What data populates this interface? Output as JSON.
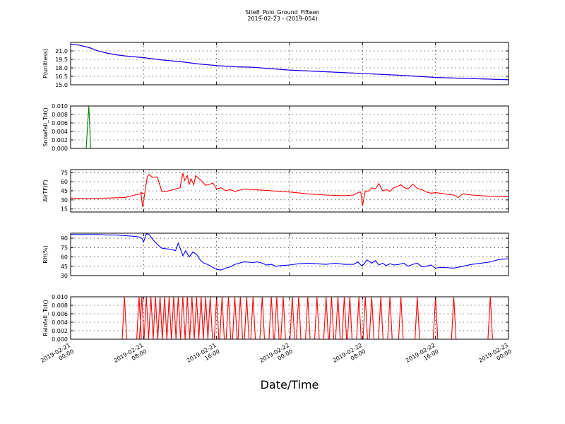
{
  "title_line1": "Site8_Polo_Ground_Fifteen",
  "title_line2": "2019-02-23 - (2019-054)",
  "xlabel": "Date/Time",
  "chart_data": {
    "type": "line",
    "x_tick_labels": [
      [
        "2019-02-21",
        "00:00"
      ],
      [
        "2019-02-21",
        "08:00"
      ],
      [
        "2019-02-21",
        "16:00"
      ],
      [
        "2019-02-22",
        "00:00"
      ],
      [
        "2019-02-22",
        "08:00"
      ],
      [
        "2019-02-22",
        "16:00"
      ],
      [
        "2019-02-23",
        "00:00"
      ]
    ],
    "x_tick_hours": [
      0,
      8,
      16,
      24,
      32,
      40,
      48
    ],
    "xlim_hours": [
      0,
      48
    ],
    "grid": true,
    "panels": [
      {
        "ylabel": "P(unitless)",
        "ylim": [
          15.0,
          22.5
        ],
        "yticks": [
          15.0,
          16.5,
          18.0,
          19.5,
          21.0
        ],
        "ytick_labels": [
          "15.0",
          "16.5",
          "18.0",
          "19.5",
          "21.0"
        ],
        "series": [
          {
            "color": "#ff0000",
            "x": [
              0,
              1,
              2,
              3,
              4,
              5,
              6,
              8,
              10,
              12,
              14,
              16,
              18,
              20,
              24,
              28,
              32,
              36,
              40,
              44,
              48
            ],
            "y": [
              22.2,
              22.0,
              21.6,
              21.0,
              20.6,
              20.3,
              20.1,
              19.8,
              19.4,
              19.1,
              18.7,
              18.4,
              18.2,
              18.1,
              17.6,
              17.3,
              17.0,
              16.7,
              16.3,
              16.1,
              15.9
            ]
          },
          {
            "color": "#0000ff",
            "x": [
              0,
              1,
              2,
              3,
              4,
              5,
              6,
              8,
              10,
              12,
              14,
              16,
              18,
              20,
              24,
              28,
              32,
              36,
              40,
              44,
              48
            ],
            "y": [
              22.2,
              22.0,
              21.6,
              21.0,
              20.6,
              20.3,
              20.1,
              19.8,
              19.4,
              19.1,
              18.7,
              18.4,
              18.2,
              18.1,
              17.6,
              17.3,
              17.0,
              16.7,
              16.3,
              16.1,
              15.9
            ]
          }
        ]
      },
      {
        "ylabel": "Snowfall_Tot()",
        "ylim": [
          0.0,
          0.01
        ],
        "yticks": [
          0.0,
          0.002,
          0.004,
          0.006,
          0.008,
          0.01
        ],
        "ytick_labels": [
          "0.000",
          "0.002",
          "0.004",
          "0.006",
          "0.008",
          "0.010"
        ],
        "series": [
          {
            "color": "#008000",
            "x": [
              0,
              1.7,
              2.0,
              2.2,
              48
            ],
            "y": [
              0,
              0,
              0.01,
              0,
              0
            ]
          }
        ]
      },
      {
        "ylabel": "AirTF(F)",
        "ylim": [
          10,
          80
        ],
        "yticks": [
          15,
          30,
          45,
          60,
          75
        ],
        "ytick_labels": [
          "15",
          "30",
          "45",
          "60",
          "75"
        ],
        "series": [
          {
            "color": "#ff0000",
            "x": [
              0,
              2,
              4,
              6,
              7,
              8,
              7.7,
              7.9,
              8.1,
              8.4,
              8.6,
              9.0,
              9.5,
              10.0,
              10.5,
              11.0,
              12.0,
              12.3,
              12.5,
              12.8,
              13.0,
              13.2,
              13.5,
              13.7,
              14.0,
              14.3,
              14.8,
              15.3,
              15.6,
              16.0,
              16.5,
              17.0,
              17.5,
              18.0,
              19.0,
              20.0,
              21.0,
              22.0,
              24.0,
              26.0,
              28.0,
              30.0,
              31.0,
              31.5,
              31.8,
              32.0,
              32.3,
              32.6,
              33.0,
              33.4,
              33.8,
              34.2,
              34.6,
              35.0,
              35.4,
              35.8,
              36.2,
              36.6,
              37.0,
              37.5,
              38.0,
              38.5,
              39.0,
              39.5,
              40.0,
              41.0,
              42.0,
              42.5,
              43.0,
              44.0,
              45.0,
              46.0,
              48.0
            ],
            "y": [
              33,
              32,
              33,
              34,
              38,
              41,
              42,
              18,
              38,
              68,
              72,
              67,
              68,
              44,
              44,
              46,
              50,
              74,
              62,
              70,
              55,
              65,
              55,
              70,
              66,
              62,
              54,
              56,
              58,
              48,
              50,
              45,
              47,
              44,
              48,
              47,
              46,
              45,
              43,
              40,
              38,
              37,
              38,
              42,
              43,
              20,
              45,
              44,
              50,
              48,
              57,
              45,
              47,
              44,
              50,
              52,
              55,
              50,
              48,
              56,
              49,
              47,
              43,
              41,
              42,
              40,
              38,
              34,
              40,
              38,
              37,
              36,
              35
            ]
          }
        ]
      },
      {
        "ylabel": "RH(%)",
        "ylim": [
          30,
          98
        ],
        "yticks": [
          30,
          45,
          60,
          75,
          90
        ],
        "ytick_labels": [
          "30",
          "45",
          "60",
          "75",
          "90"
        ],
        "series": [
          {
            "color": "#0000ff",
            "x": [
              0,
              2,
              3,
              4,
              5,
              6,
              7,
              7.5,
              7.8,
              8.0,
              8.3,
              8.6,
              9.0,
              9.5,
              10.0,
              11.0,
              11.5,
              11.8,
              12.0,
              12.3,
              12.6,
              13.0,
              13.4,
              13.8,
              14.2,
              14.6,
              15.0,
              15.5,
              16.0,
              16.5,
              17.0,
              17.5,
              18.0,
              19.0,
              20.0,
              20.5,
              21.0,
              21.5,
              22.0,
              22.5,
              23.0,
              24.0,
              25.0,
              26.0,
              27.0,
              28.0,
              29.0,
              30.0,
              31.0,
              31.5,
              31.8,
              32.0,
              32.5,
              33.0,
              33.4,
              33.8,
              34.2,
              34.6,
              35.0,
              35.5,
              36.0,
              36.5,
              37.0,
              37.5,
              38.0,
              38.5,
              39.0,
              39.5,
              40.0,
              40.5,
              41.0,
              42.0,
              43.0,
              44.0,
              45.0,
              46.0,
              47.0,
              48.0
            ],
            "y": [
              96,
              96,
              96,
              95,
              95,
              94,
              93,
              92,
              90,
              84,
              97,
              96,
              88,
              80,
              74,
              72,
              70,
              82,
              74,
              62,
              70,
              60,
              68,
              64,
              55,
              50,
              48,
              44,
              40,
              39,
              42,
              44,
              48,
              52,
              51,
              52,
              50,
              47,
              48,
              45,
              46,
              47,
              49,
              50,
              49,
              48,
              50,
              48,
              48,
              52,
              47,
              46,
              55,
              50,
              54,
              47,
              50,
              46,
              49,
              47,
              48,
              50,
              45,
              48,
              50,
              44,
              45,
              47,
              42,
              43,
              43,
              42,
              45,
              48,
              50,
              52,
              56,
              57
            ]
          }
        ]
      },
      {
        "ylabel": "Rainfall_Tot()",
        "ylim": [
          0.0,
          0.01
        ],
        "yticks": [
          0.0,
          0.002,
          0.004,
          0.006,
          0.008,
          0.01
        ],
        "ytick_labels": [
          "0.000",
          "0.002",
          "0.004",
          "0.006",
          "0.008",
          "0.010"
        ],
        "series": [
          {
            "color": "#ff0000",
            "spikes": [
              5.9,
              7.5,
              7.8,
              8.3,
              8.8,
              9.3,
              9.8,
              10.3,
              10.8,
              11.3,
              11.8,
              12.3,
              12.8,
              13.3,
              13.8,
              14.3,
              14.8,
              15.3,
              16.0,
              16.6,
              17.3,
              18.0,
              18.6,
              19.3,
              20.0,
              21.0,
              22.0,
              22.6,
              23.3,
              24.3,
              25.0,
              26.0,
              27.0,
              28.0,
              28.6,
              29.3,
              30.0,
              30.6,
              31.6,
              32.3,
              33.0,
              34.0,
              35.0,
              36.2,
              38.0,
              40.0,
              42.0,
              46.0
            ],
            "spike_value": 0.01,
            "spike_halfwidth_hours": 0.25
          }
        ]
      }
    ]
  }
}
